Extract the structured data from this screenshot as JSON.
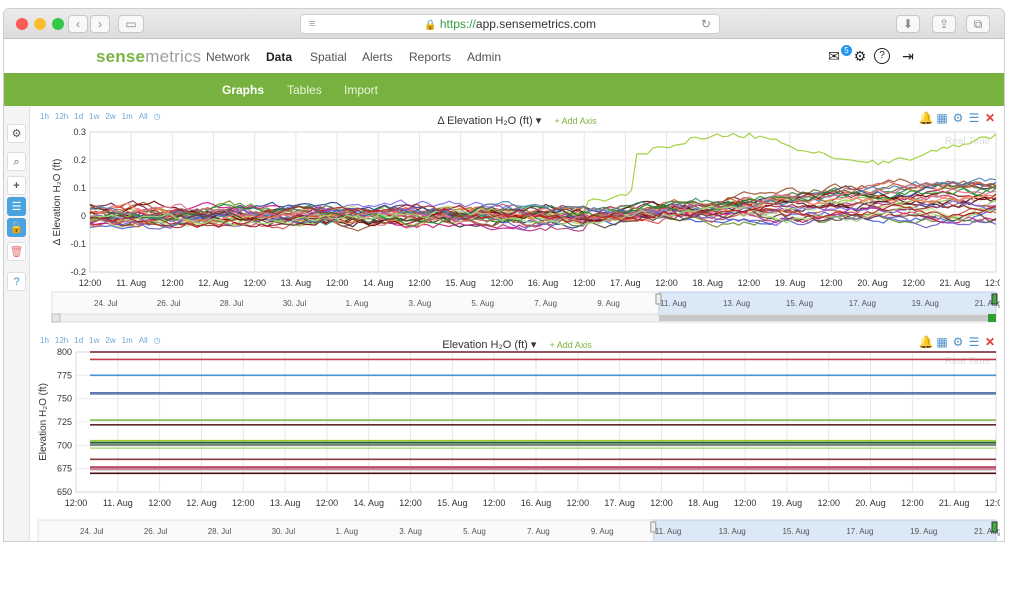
{
  "browser": {
    "url_scheme": "https://",
    "url_host": "app.sensemetrics.com",
    "traffic_lights": [
      "#fc5b57",
      "#fdbc2e",
      "#34c748"
    ]
  },
  "app": {
    "logo_a": "sense",
    "logo_b": "metrics",
    "nav": [
      "Network",
      "Data",
      "Spatial",
      "Alerts",
      "Reports",
      "Admin"
    ],
    "active_nav": "Data",
    "notification_count": "5",
    "subnav": [
      "Graphs",
      "Tables",
      "Import"
    ],
    "active_subnav": "Graphs",
    "accent": "#77b13f"
  },
  "time_buttons": [
    "1h",
    "12h",
    "1d",
    "1w",
    "2w",
    "1m",
    "All"
  ],
  "add_axis_label": "Add Axis",
  "navigator": {
    "labels": [
      "24. Jul",
      "26. Jul",
      "28. Jul",
      "30. Jul",
      "1. Aug",
      "3. Aug",
      "5. Aug",
      "7. Aug",
      "9. Aug",
      "11. Aug",
      "13. Aug",
      "15. Aug",
      "17. Aug",
      "19. Aug",
      "21. Aug"
    ]
  },
  "chart_data": [
    {
      "type": "line",
      "title": "Δ Elevation H₂O (ft)",
      "ylabel": "Δ Elevation H₂O (ft)",
      "ylim": [
        -0.2,
        0.3
      ],
      "yticks": [
        0.3,
        0.2,
        0.1,
        0,
        -0.1,
        -0.2
      ],
      "xticks": [
        "12:00",
        "11. Aug",
        "12:00",
        "12. Aug",
        "12:00",
        "13. Aug",
        "12:00",
        "14. Aug",
        "12:00",
        "15. Aug",
        "12:00",
        "16. Aug",
        "12:00",
        "17. Aug",
        "12:00",
        "18. Aug",
        "12:00",
        "19. Aug",
        "12:00",
        "20. Aug",
        "12:00",
        "21. Aug",
        "12:00"
      ],
      "watermark": "Real Time",
      "grid": true,
      "series_count": 30,
      "series_colors": [
        "#2b1a1a",
        "#7a1f3d",
        "#9acd32",
        "#c0504d",
        "#3b5bd6",
        "#b03a7a",
        "#6b8e23",
        "#e07b7b",
        "#4b0f0f",
        "#8fbc4f",
        "#d2691e",
        "#1f3f8f",
        "#c71585",
        "#a0522d",
        "#2e8b57",
        "#d14a4a",
        "#7b68ee",
        "#556b2f",
        "#b5e07b",
        "#800000",
        "#ff7f50",
        "#4682b4",
        "#9b2335",
        "#6a5acd",
        "#cd5c5c",
        "#228b22",
        "#db7093",
        "#5c4033",
        "#a3d977",
        "#b22222"
      ]
    },
    {
      "type": "line",
      "title": "Elevation H₂O (ft)",
      "ylabel": "Elevation H₂O (ft)",
      "ylim": [
        650,
        800
      ],
      "yticks": [
        800,
        775,
        750,
        725,
        700,
        675,
        650
      ],
      "xticks": [
        "12:00",
        "11. Aug",
        "12:00",
        "12. Aug",
        "12:00",
        "13. Aug",
        "12:00",
        "14. Aug",
        "12:00",
        "15. Aug",
        "12:00",
        "16. Aug",
        "12:00",
        "17. Aug",
        "12:00",
        "18. Aug",
        "12:00",
        "19. Aug",
        "12:00",
        "20. Aug",
        "12:00",
        "21. Aug",
        "12:00"
      ],
      "watermark": "Real Time",
      "grid": true,
      "series": [
        {
          "value": 800,
          "color": "#6b1f2a"
        },
        {
          "value": 792,
          "color": "#c0404a"
        },
        {
          "value": 775,
          "color": "#4a90d9"
        },
        {
          "value": 756,
          "color": "#2c4f8a"
        },
        {
          "value": 755,
          "color": "#6c8ebf"
        },
        {
          "value": 727,
          "color": "#7cb342"
        },
        {
          "value": 722,
          "color": "#5b2a2a"
        },
        {
          "value": 705,
          "color": "#9acd32"
        },
        {
          "value": 703,
          "color": "#2e5e3e"
        },
        {
          "value": 701,
          "color": "#4b8f5b"
        },
        {
          "value": 700,
          "color": "#888888"
        },
        {
          "value": 697,
          "color": "#b5d98a"
        },
        {
          "value": 685,
          "color": "#8b3a3a"
        },
        {
          "value": 677,
          "color": "#d46a6a"
        },
        {
          "value": 676,
          "color": "#b04a7a"
        },
        {
          "value": 674,
          "color": "#c98a8a"
        },
        {
          "value": 670,
          "color": "#4b1010"
        }
      ]
    }
  ]
}
